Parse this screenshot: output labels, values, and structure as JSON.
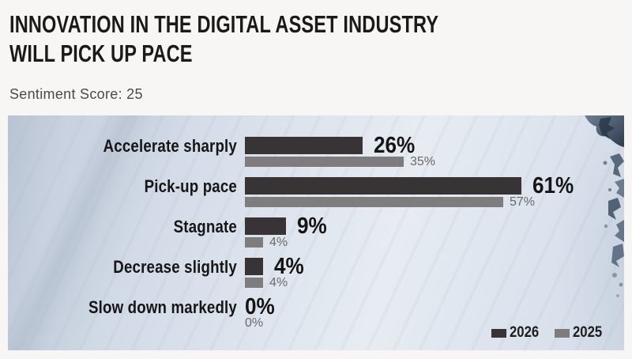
{
  "page": {
    "title_line1": "INNOVATION IN THE DIGITAL ASSET INDUSTRY",
    "title_line2": "WILL PICK UP PACE",
    "subtitle": "Sentiment Score: 25"
  },
  "colors": {
    "series_2026": "#383334",
    "series_2025": "#7e7c7d",
    "page_background": "#f7f6f4",
    "snow_light": "#e7ecf2",
    "snow_shade": "#c9d3e1",
    "rock_dark": "#2e3c4c",
    "rock_light": "#6d7f94",
    "secondary_value_text": "#6c6a6a",
    "title_text": "#1b1919"
  },
  "chart_data": {
    "type": "bar",
    "orientation": "horizontal",
    "title": "Innovation in the digital asset industry will pick up pace",
    "subtitle": "Sentiment Score: 25",
    "categories": [
      "Accelerate sharply",
      "Pick-up pace",
      "Stagnate",
      "Decrease slightly",
      "Slow down markedly"
    ],
    "series": [
      {
        "name": "2026",
        "color": "#383334",
        "values": [
          26,
          61,
          9,
          4,
          0
        ]
      },
      {
        "name": "2025",
        "color": "#7e7c7d",
        "values": [
          35,
          57,
          4,
          4,
          0
        ]
      }
    ],
    "value_suffix": "%",
    "xlim": [
      0,
      61
    ],
    "grid": false,
    "legend_position": "bottom-right",
    "background": "snow-mountain-photo"
  }
}
